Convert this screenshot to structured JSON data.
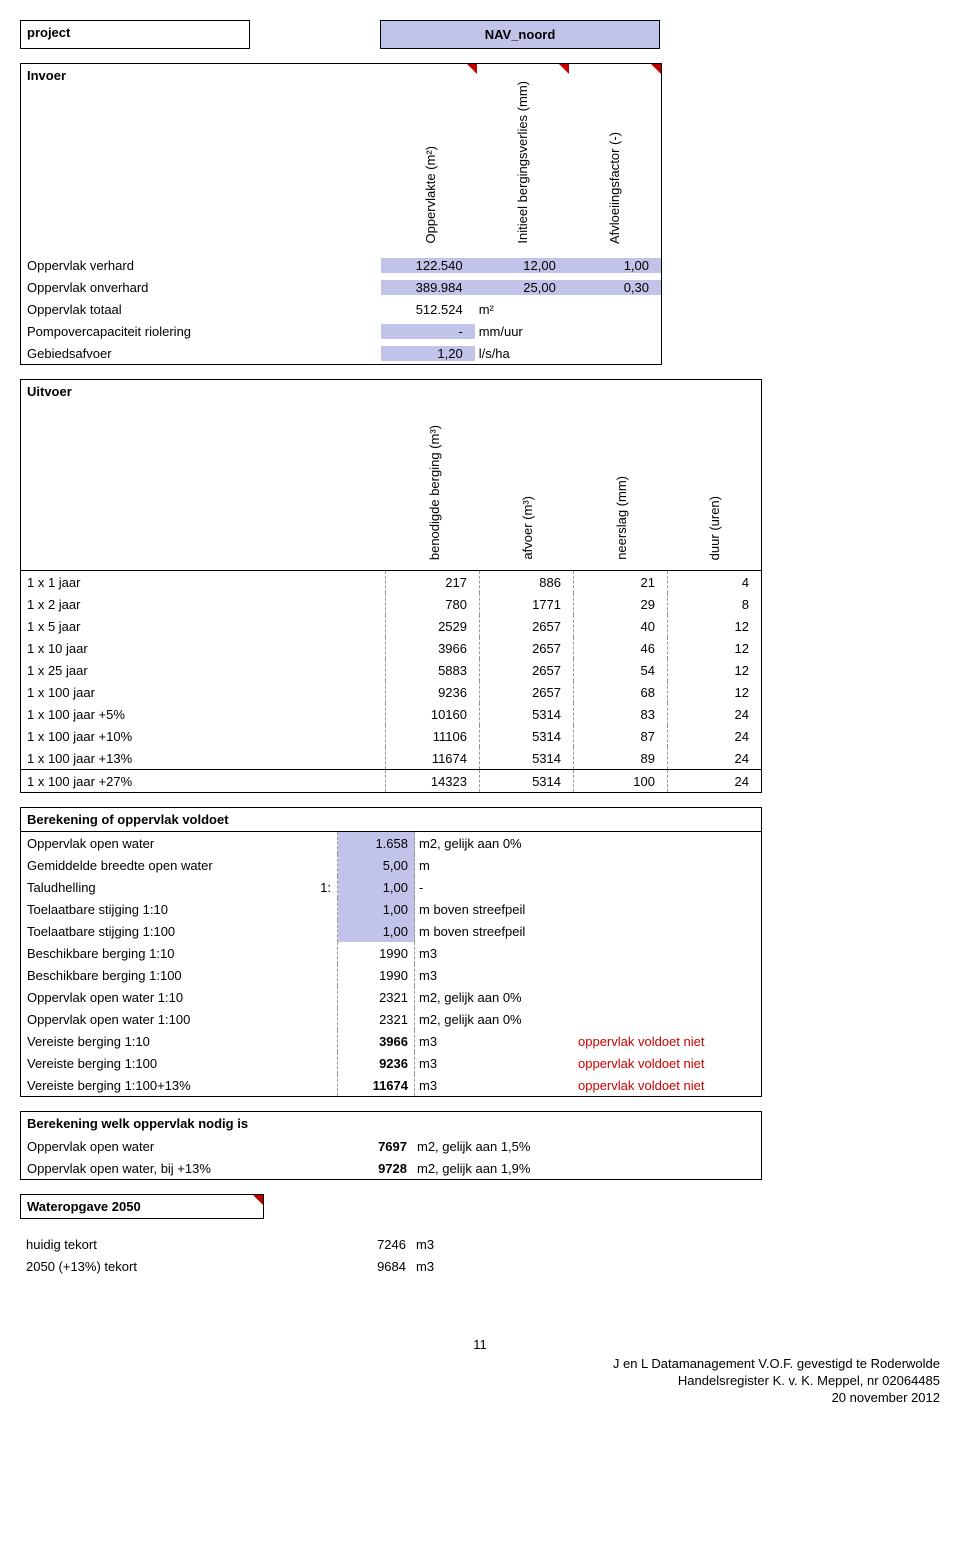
{
  "project": {
    "label": "project",
    "title": "NAV_noord"
  },
  "invoer": {
    "title": "Invoer",
    "headers": [
      "Oppervlakte (m²)",
      "Initieel bergingsverlies (mm)",
      "Afvloeiingsfactor (-)"
    ],
    "rows": [
      {
        "label": "Oppervlak verhard",
        "v": [
          "122.540",
          "12,00",
          "1,00"
        ],
        "lav": [
          true,
          true,
          true
        ]
      },
      {
        "label": "Oppervlak onverhard",
        "v": [
          "389.984",
          "25,00",
          "0,30"
        ],
        "lav": [
          true,
          true,
          true
        ]
      },
      {
        "label": "Oppervlak totaal",
        "v": [
          "512.524",
          "m²",
          ""
        ],
        "lav": [
          false,
          false,
          false
        ],
        "unit2": true
      },
      {
        "label": "Pompovercapaciteit riolering",
        "v": [
          "-",
          "mm/uur",
          ""
        ],
        "lav": [
          true,
          false,
          false
        ],
        "unit2": true
      },
      {
        "label": "Gebiedsafvoer",
        "v": [
          "1,20",
          "l/s/ha",
          ""
        ],
        "lav": [
          true,
          false,
          false
        ],
        "unit2": true
      }
    ]
  },
  "uitvoer": {
    "title": "Uitvoer",
    "headers": [
      "benodigde berging (m³)",
      "afvoer (m³)",
      "neerslag (mm)",
      "duur (uren)"
    ],
    "rows": [
      {
        "label": "1 x 1 jaar",
        "v": [
          "217",
          "886",
          "21",
          "4"
        ]
      },
      {
        "label": "1 x 2 jaar",
        "v": [
          "780",
          "1771",
          "29",
          "8"
        ]
      },
      {
        "label": "1 x 5 jaar",
        "v": [
          "2529",
          "2657",
          "40",
          "12"
        ]
      },
      {
        "label": "1 x 10 jaar",
        "v": [
          "3966",
          "2657",
          "46",
          "12"
        ]
      },
      {
        "label": "1 x 25 jaar",
        "v": [
          "5883",
          "2657",
          "54",
          "12"
        ]
      },
      {
        "label": "1 x 100 jaar",
        "v": [
          "9236",
          "2657",
          "68",
          "12"
        ]
      },
      {
        "label": "1 x 100 jaar +5%",
        "v": [
          "10160",
          "5314",
          "83",
          "24"
        ]
      },
      {
        "label": "1 x 100 jaar +10%",
        "v": [
          "11106",
          "5314",
          "87",
          "24"
        ]
      },
      {
        "label": "1 x 100 jaar +13%",
        "v": [
          "11674",
          "5314",
          "89",
          "24"
        ]
      },
      {
        "label": "1 x 100 jaar +27%",
        "v": [
          "14323",
          "5314",
          "100",
          "24"
        ]
      }
    ]
  },
  "berekening1": {
    "title": "Berekening of oppervlak voldoet",
    "rows": [
      {
        "label": "Oppervlak open water",
        "scope": "",
        "val": "1.658",
        "unit": "m2, gelijk aan 0%",
        "status": "",
        "lav": true
      },
      {
        "label": "Gemiddelde breedte open water",
        "scope": "",
        "val": "5,00",
        "unit": "m",
        "status": "",
        "lav": true
      },
      {
        "label": "Taludhelling",
        "scope": "1:",
        "val": "1,00",
        "unit": "-",
        "status": "",
        "lav": true
      },
      {
        "label": "Toelaatbare stijging 1:10",
        "scope": "",
        "val": "1,00",
        "unit": "m boven streefpeil",
        "status": "",
        "lav": true
      },
      {
        "label": "Toelaatbare stijging 1:100",
        "scope": "",
        "val": "1,00",
        "unit": "m boven streefpeil",
        "status": "",
        "lav": true
      },
      {
        "label": "Beschikbare berging 1:10",
        "scope": "",
        "val": "1990",
        "unit": "m3",
        "status": "",
        "lav": false
      },
      {
        "label": "Beschikbare berging 1:100",
        "scope": "",
        "val": "1990",
        "unit": "m3",
        "status": "",
        "lav": false
      },
      {
        "label": "Oppervlak open water 1:10",
        "scope": "",
        "val": "2321",
        "unit": "m2, gelijk aan 0%",
        "status": "",
        "lav": false
      },
      {
        "label": "Oppervlak open water 1:100",
        "scope": "",
        "val": "2321",
        "unit": "m2, gelijk aan 0%",
        "status": "",
        "lav": false
      },
      {
        "label": "Vereiste berging 1:10",
        "scope": "",
        "val": "3966",
        "unit": "m3",
        "status": "oppervlak voldoet niet",
        "lav": false,
        "bold": true
      },
      {
        "label": "Vereiste berging 1:100",
        "scope": "",
        "val": "9236",
        "unit": "m3",
        "status": "oppervlak voldoet niet",
        "lav": false,
        "bold": true
      },
      {
        "label": "Vereiste berging 1:100+13%",
        "scope": "",
        "val": "11674",
        "unit": "m3",
        "status": "oppervlak voldoet niet",
        "lav": false,
        "bold": true
      }
    ]
  },
  "berekening2": {
    "title": "Berekening welk oppervlak nodig is",
    "rows": [
      {
        "label": "Oppervlak open water",
        "val": "7697",
        "unit": "m2, gelijk aan 1,5%"
      },
      {
        "label": "Oppervlak open water, bij +13%",
        "val": "9728",
        "unit": "m2, gelijk aan 1,9%"
      }
    ]
  },
  "wateropgave": {
    "title": "Wateropgave 2050",
    "rows": [
      {
        "label": "huidig tekort",
        "val": "7246",
        "unit": "m3"
      },
      {
        "label": "2050 (+13%) tekort",
        "val": "9684",
        "unit": "m3"
      }
    ]
  },
  "footer": {
    "page": "11",
    "line1": "J en L Datamanagement V.O.F. gevestigd te Roderwolde",
    "line2": "Handelsregister K. v. K. Meppel, nr 02064485",
    "date": "20 november 2012"
  }
}
